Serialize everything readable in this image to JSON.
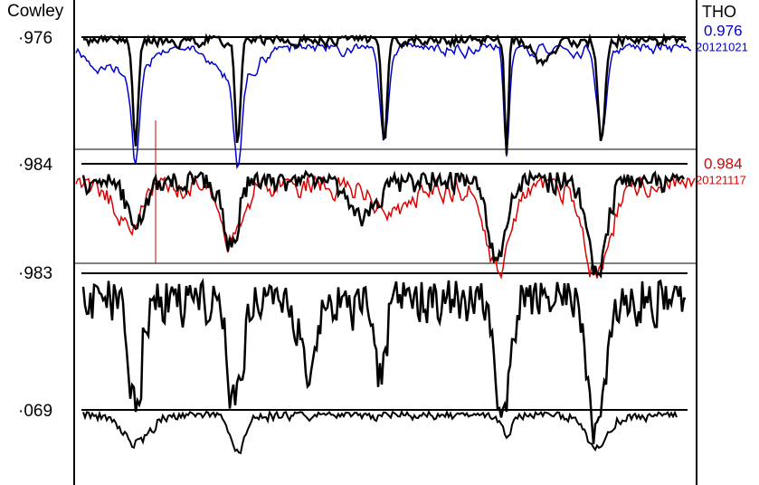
{
  "labels": {
    "left": {
      "station": "Cowley",
      "traces": [
        "·976",
        "·984",
        "·983",
        "·069"
      ]
    },
    "right": {
      "station": "THO",
      "traces": [
        {
          "value": "0.976",
          "date": "20121021"
        },
        {
          "value": "0.984",
          "date": "20121117"
        }
      ]
    }
  }
}
